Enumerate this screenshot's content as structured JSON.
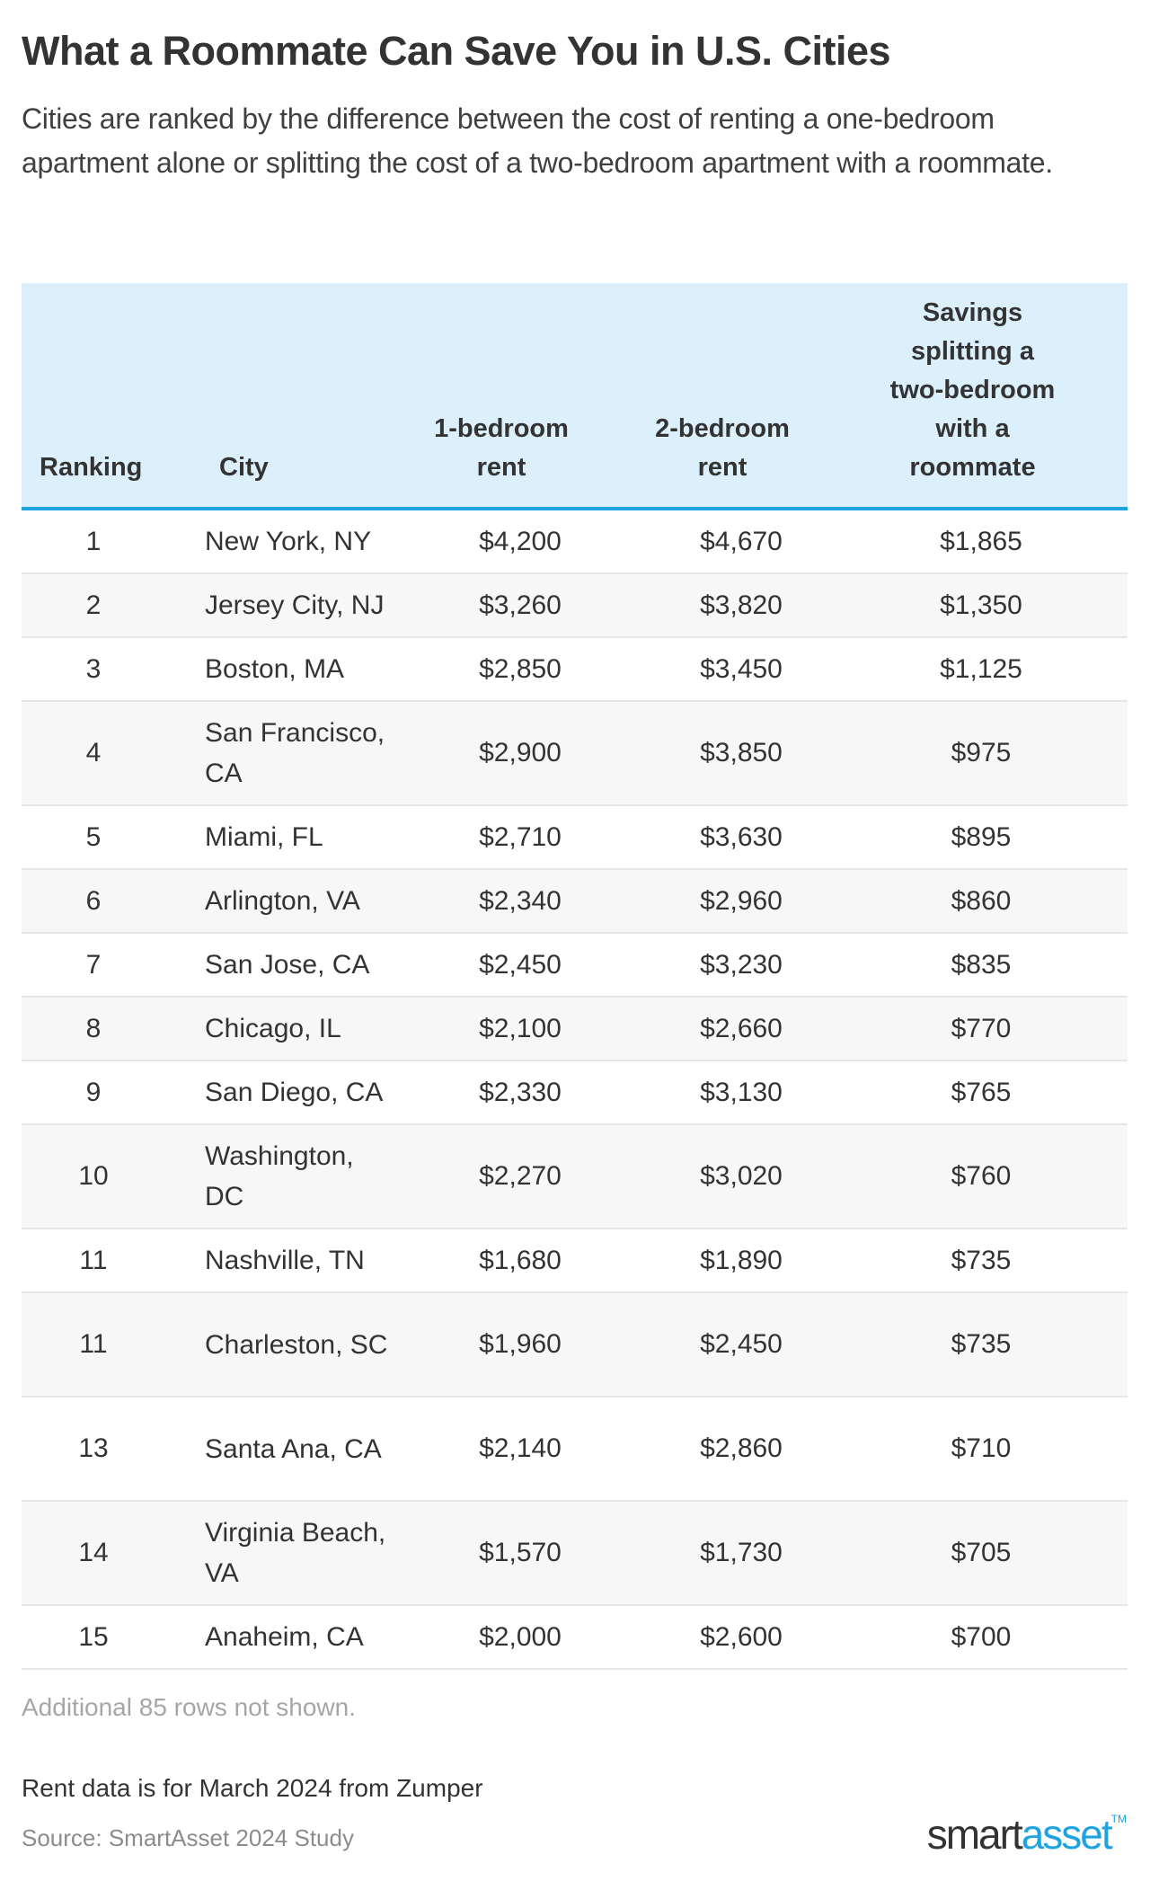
{
  "header": {
    "title": "What a Roommate Can Save You in U.S. Cities",
    "subtitle": "Cities are ranked by the difference between the cost of renting a one-bedroom apartment alone or splitting the cost of a two-bedroom apartment with a roommate."
  },
  "table": {
    "columns": [
      "Ranking",
      "City",
      "1-bedroom rent",
      "2-bedroom rent",
      "Savings splitting a two-bedroom with a roommate"
    ],
    "rows": [
      {
        "rank": "1",
        "city": "New York, NY",
        "one": "$4,200",
        "two": "$4,670",
        "save": "$1,865"
      },
      {
        "rank": "2",
        "city": "Jersey City, NJ",
        "one": "$3,260",
        "two": "$3,820",
        "save": "$1,350"
      },
      {
        "rank": "3",
        "city": "Boston, MA",
        "one": "$2,850",
        "two": "$3,450",
        "save": "$1,125"
      },
      {
        "rank": "4",
        "city": "San Francisco, CA",
        "one": "$2,900",
        "two": "$3,850",
        "save": "$975"
      },
      {
        "rank": "5",
        "city": "Miami, FL",
        "one": "$2,710",
        "two": "$3,630",
        "save": "$895"
      },
      {
        "rank": "6",
        "city": "Arlington, VA",
        "one": "$2,340",
        "two": "$2,960",
        "save": "$860"
      },
      {
        "rank": "7",
        "city": "San Jose, CA",
        "one": "$2,450",
        "two": "$3,230",
        "save": "$835"
      },
      {
        "rank": "8",
        "city": "Chicago, IL",
        "one": "$2,100",
        "two": "$2,660",
        "save": "$770"
      },
      {
        "rank": "9",
        "city": "San Diego, CA",
        "one": "$2,330",
        "two": "$3,130",
        "save": "$765"
      },
      {
        "rank": "10",
        "city": "Washington, DC",
        "one": "$2,270",
        "two": "$3,020",
        "save": "$760"
      },
      {
        "rank": "11",
        "city": "Nashville, TN",
        "one": "$1,680",
        "two": "$1,890",
        "save": "$735"
      },
      {
        "rank": "11",
        "city": "Charleston, SC",
        "one": "$1,960",
        "two": "$2,450",
        "save": "$735"
      },
      {
        "rank": "13",
        "city": "Santa Ana, CA",
        "one": "$2,140",
        "two": "$2,860",
        "save": "$710"
      },
      {
        "rank": "14",
        "city": "Virginia Beach, VA",
        "one": "$1,570",
        "two": "$1,730",
        "save": "$705"
      },
      {
        "rank": "15",
        "city": "Anaheim, CA",
        "one": "$2,000",
        "two": "$2,600",
        "save": "$700"
      }
    ]
  },
  "footer": {
    "additional_rows": "Additional 85 rows not shown.",
    "rent_note": "Rent data is for March 2024 from Zumper",
    "source": "Source: SmartAsset 2024 Study",
    "logo_part1": "smart",
    "logo_part2": "asset",
    "logo_tm": "TM"
  },
  "colors": {
    "header_bg": "#dcf0fc",
    "accent": "#1fa3e0",
    "alt_row": "#f7f7f7"
  },
  "chart_data": {
    "type": "table",
    "title": "What a Roommate Can Save You in U.S. Cities",
    "subtitle": "Cities are ranked by the difference between the cost of renting a one-bedroom apartment alone or splitting the cost of a two-bedroom apartment with a roommate.",
    "columns": [
      "Ranking",
      "City",
      "1-bedroom rent",
      "2-bedroom rent",
      "Savings splitting a two-bedroom with a roommate"
    ],
    "rows": [
      [
        1,
        "New York, NY",
        4200,
        4670,
        1865
      ],
      [
        2,
        "Jersey City, NJ",
        3260,
        3820,
        1350
      ],
      [
        3,
        "Boston, MA",
        2850,
        3450,
        1125
      ],
      [
        4,
        "San Francisco, CA",
        2900,
        3850,
        975
      ],
      [
        5,
        "Miami, FL",
        2710,
        3630,
        895
      ],
      [
        6,
        "Arlington, VA",
        2340,
        2960,
        860
      ],
      [
        7,
        "San Jose, CA",
        2450,
        3230,
        835
      ],
      [
        8,
        "Chicago, IL",
        2100,
        2660,
        770
      ],
      [
        9,
        "San Diego, CA",
        2330,
        3130,
        765
      ],
      [
        10,
        "Washington, DC",
        2270,
        3020,
        760
      ],
      [
        11,
        "Nashville, TN",
        1680,
        1890,
        735
      ],
      [
        11,
        "Charleston, SC",
        1960,
        2450,
        735
      ],
      [
        13,
        "Santa Ana, CA",
        2140,
        2860,
        710
      ],
      [
        14,
        "Virginia Beach, VA",
        1570,
        1730,
        705
      ],
      [
        15,
        "Anaheim, CA",
        2000,
        2600,
        700
      ]
    ],
    "notes": [
      "Additional 85 rows not shown.",
      "Rent data is for March 2024 from Zumper",
      "Source: SmartAsset 2024 Study"
    ]
  }
}
